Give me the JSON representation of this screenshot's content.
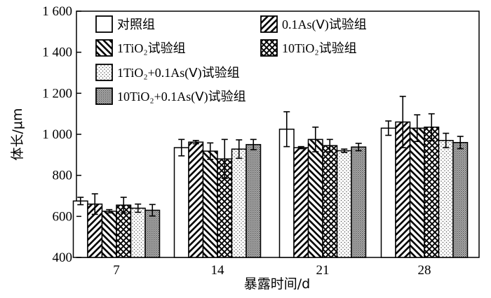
{
  "chart_data": {
    "type": "bar",
    "xlabel": "暴露时间/d",
    "ylabel": "体长/μm",
    "ylim": [
      400,
      1600
    ],
    "yticks": [
      400,
      600,
      800,
      1000,
      1200,
      1400,
      1600
    ],
    "ytick_labels": [
      "400",
      "600",
      "800",
      "1 000",
      "1 200",
      "1 400",
      "1 600"
    ],
    "categories": [
      "7",
      "14",
      "21",
      "28"
    ],
    "grid": false,
    "legend_position": "top",
    "series": [
      {
        "name": "对照组",
        "pattern": "blank",
        "values": [
          675,
          935,
          1025,
          1030
        ],
        "errors": [
          18,
          40,
          85,
          35
        ]
      },
      {
        "name": "0.1As(Ⅴ)试验组",
        "pattern": "diag-fwd",
        "values": [
          660,
          962,
          935,
          1060
        ],
        "errors": [
          50,
          8,
          5,
          125
        ]
      },
      {
        "name": "1TiO₂试验组",
        "pattern": "diag-back",
        "values": [
          625,
          918,
          975,
          1030
        ],
        "errors": [
          8,
          40,
          60,
          65
        ]
      },
      {
        "name": "10TiO₂试验组",
        "pattern": "crosshatch",
        "values": [
          655,
          880,
          945,
          1035
        ],
        "errors": [
          38,
          95,
          30,
          65
        ]
      },
      {
        "name": "1TiO₂+0.1As(Ⅴ)试验组",
        "pattern": "dots",
        "values": [
          640,
          928,
          920,
          970
        ],
        "errors": [
          20,
          45,
          8,
          35
        ]
      },
      {
        "name": "10TiO₂+0.1As(Ⅴ)试验组",
        "pattern": "dense-dots",
        "values": [
          630,
          950,
          938,
          960
        ],
        "errors": [
          28,
          25,
          18,
          30
        ]
      }
    ]
  }
}
